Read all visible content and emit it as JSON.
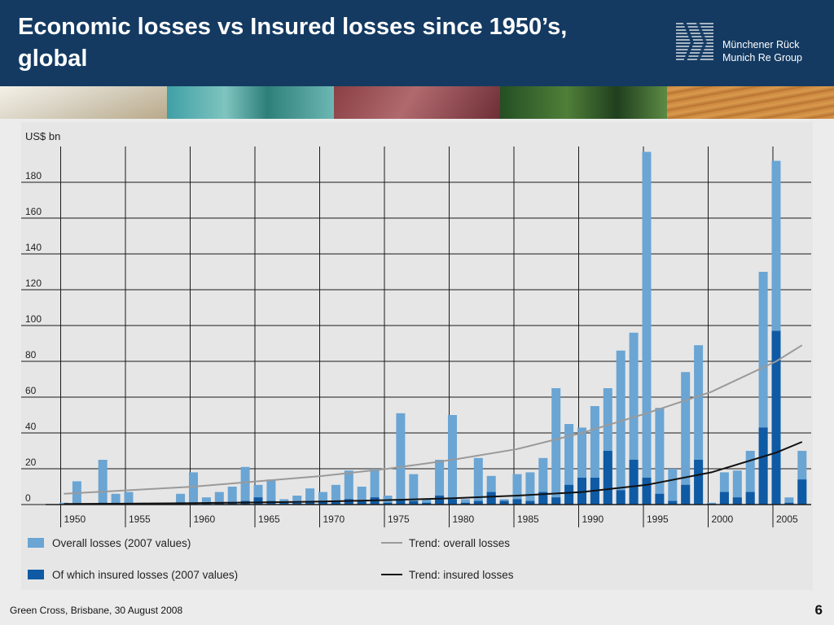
{
  "slide": {
    "title_line1": "Economic losses vs Insured losses since 1950’s,",
    "title_line2": "global",
    "logo_line1": "Münchener Rück",
    "logo_line2": "Munich Re Group",
    "footer": "Green Cross, Brisbane, 30 August 2008",
    "page_number": "6"
  },
  "colors": {
    "header_bg": "#143a62",
    "overall": "#6aa5d4",
    "insured": "#0f5aa4",
    "trend_overall": "#9a9a9a",
    "trend_insured": "#111111"
  },
  "chart_data": {
    "type": "bar",
    "unit_label": "US$ bn",
    "x": [
      1950,
      1951,
      1952,
      1953,
      1954,
      1955,
      1956,
      1957,
      1958,
      1959,
      1960,
      1961,
      1962,
      1963,
      1964,
      1965,
      1966,
      1967,
      1968,
      1969,
      1970,
      1971,
      1972,
      1973,
      1974,
      1975,
      1976,
      1977,
      1978,
      1979,
      1980,
      1981,
      1982,
      1983,
      1984,
      1985,
      1986,
      1987,
      1988,
      1989,
      1990,
      1991,
      1992,
      1993,
      1994,
      1995,
      1996,
      1997,
      1998,
      1999,
      2000,
      2001,
      2002,
      2003,
      2004,
      2005,
      2006,
      2007
    ],
    "x_tick_labels": [
      "1950",
      "1955",
      "1960",
      "1965",
      "1970",
      "1975",
      "1980",
      "1985",
      "1990",
      "1995",
      "2000",
      "2005"
    ],
    "y_ticks": [
      0,
      20,
      40,
      60,
      80,
      100,
      120,
      140,
      160,
      180
    ],
    "ylim": [
      0,
      200
    ],
    "series": [
      {
        "name": "Overall losses (2007 values)",
        "values": [
          1,
          13,
          0,
          25,
          6,
          7,
          1,
          1,
          1,
          6,
          18,
          4,
          7,
          10,
          21,
          11,
          14,
          3,
          5,
          9,
          7,
          11,
          19,
          10,
          20,
          5,
          51,
          17,
          3,
          25,
          50,
          3,
          26,
          16,
          3,
          17,
          18,
          26,
          65,
          45,
          43,
          55,
          65,
          86,
          96,
          197,
          54,
          20,
          74,
          89,
          1,
          18,
          19,
          30,
          130,
          192,
          4,
          30
        ]
      },
      {
        "name": "Of which insured losses (2007 values)",
        "values": [
          0,
          0.5,
          0,
          1,
          0.5,
          0.5,
          0,
          0,
          0,
          0.5,
          1,
          0.5,
          1,
          1,
          2,
          4,
          2,
          1,
          1,
          2,
          2,
          2,
          3,
          2,
          4,
          1,
          3,
          2,
          1,
          5,
          3,
          1,
          2,
          7,
          2,
          3,
          2,
          7,
          4,
          11,
          15,
          15,
          30,
          8,
          25,
          15,
          6,
          2,
          11,
          25,
          0.5,
          7,
          4,
          7,
          43,
          97,
          1,
          14
        ]
      },
      {
        "name": "Trend: overall losses",
        "x": [
          1950,
          1955,
          1960,
          1965,
          1970,
          1975,
          1980,
          1985,
          1990,
          1995,
          2000,
          2005,
          2007
        ],
        "values": [
          6,
          8,
          10,
          13,
          16,
          20,
          25,
          31,
          40,
          51,
          63,
          80,
          89
        ]
      },
      {
        "name": "Trend: insured losses",
        "x": [
          1950,
          1955,
          1960,
          1965,
          1970,
          1975,
          1980,
          1985,
          1990,
          1995,
          2000,
          2005,
          2007
        ],
        "values": [
          0.3,
          0.5,
          0.8,
          1.2,
          1.7,
          2.5,
          3.5,
          5,
          7,
          11,
          18,
          29,
          35
        ]
      }
    ],
    "legend": [
      {
        "label": "Overall losses (2007 values)",
        "kind": "swatch",
        "color": "#6aa5d4"
      },
      {
        "label": "Of which insured losses (2007 values)",
        "kind": "swatch",
        "color": "#0f5aa4"
      },
      {
        "label": "Trend: overall losses",
        "kind": "line",
        "color": "#9a9a9a"
      },
      {
        "label": "Trend: insured losses",
        "kind": "line",
        "color": "#111111"
      }
    ],
    "legend_placement": "bottom",
    "grid": true
  }
}
